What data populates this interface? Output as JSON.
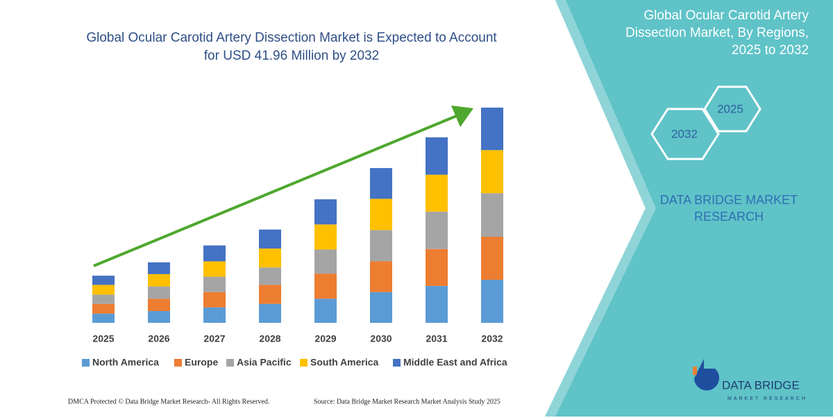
{
  "chart_data": {
    "type": "stacked-bar",
    "title": "Global Ocular Carotid Artery Dissection Market is Expected to Account for USD 41.96 Million by 2032",
    "categories": [
      "2025",
      "2026",
      "2027",
      "2028",
      "2029",
      "2030",
      "2031",
      "2032"
    ],
    "series": [
      {
        "name": "North America",
        "color": "#5b9bd5",
        "values": [
          1.8,
          2.3,
          3.0,
          3.7,
          4.7,
          6.0,
          7.2,
          8.4
        ]
      },
      {
        "name": "Europe",
        "color": "#ed7d31",
        "values": [
          1.9,
          2.4,
          3.0,
          3.7,
          4.9,
          6.0,
          7.2,
          8.4
        ]
      },
      {
        "name": "Asia Pacific",
        "color": "#a5a5a5",
        "values": [
          1.8,
          2.4,
          3.0,
          3.4,
          4.7,
          6.1,
          7.3,
          8.5
        ]
      },
      {
        "name": "South America",
        "color": "#ffc000",
        "values": [
          1.9,
          2.4,
          3.0,
          3.7,
          4.9,
          6.1,
          7.2,
          8.4
        ]
      },
      {
        "name": "Middle East and Africa",
        "color": "#4472c4",
        "values": [
          1.8,
          2.3,
          3.1,
          3.7,
          4.9,
          6.0,
          7.3,
          8.3
        ]
      }
    ],
    "arrow_color": "#4ea72e"
  },
  "panel": {
    "title": "Global Ocular Carotid Artery Dissection Market, By Regions, 2025 to 2032",
    "hex_start": "2025",
    "hex_end": "2032",
    "brand": "DATA BRIDGE MARKET RESEARCH"
  },
  "logo": {
    "name": "DATA BRIDGE",
    "tagline": "MARKET RESEARCH"
  },
  "footer": {
    "left": "DMCA Protected © Data Bridge Market Research-  All Rights Reserved.",
    "right": "Source: Data Bridge Market Research  Market Analysis Study 2025"
  }
}
